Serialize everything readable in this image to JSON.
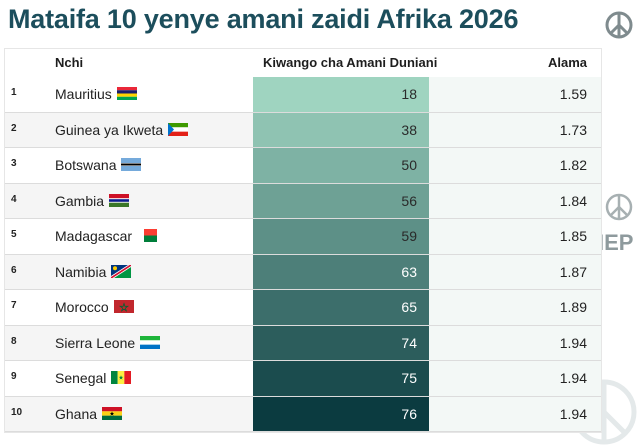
{
  "title": "Mataifa 10 yenye amani zaidi Afrika 2026",
  "logo_text": "IEP",
  "colors": {
    "title": "#1c4e5c",
    "gradient_start": "#9fd4c0",
    "gradient_end": "#0b3b40"
  },
  "chart_data": {
    "type": "table",
    "columns": [
      "",
      "Nchi",
      "Kiwango cha Amani Duniani",
      "Alama"
    ],
    "rows": [
      {
        "rank": "1",
        "country": "Mauritius",
        "flag": "mauritius-flag-icon",
        "rank_world": 18,
        "score": "1.59"
      },
      {
        "rank": "2",
        "country": "Guinea ya Ikweta",
        "flag": "equatorial-guinea-flag-icon",
        "rank_world": 38,
        "score": "1.73"
      },
      {
        "rank": "3",
        "country": "Botswana",
        "flag": "botswana-flag-icon",
        "rank_world": 50,
        "score": "1.82"
      },
      {
        "rank": "4",
        "country": "Gambia",
        "flag": "gambia-flag-icon",
        "rank_world": 56,
        "score": "1.84"
      },
      {
        "rank": "5",
        "country": "Madagascar",
        "flag": "madagascar-flag-icon",
        "rank_world": 59,
        "score": "1.85"
      },
      {
        "rank": "6",
        "country": "Namibia",
        "flag": "namibia-flag-icon",
        "rank_world": 63,
        "score": "1.87"
      },
      {
        "rank": "7",
        "country": "Morocco",
        "flag": "morocco-flag-icon",
        "rank_world": 65,
        "score": "1.89"
      },
      {
        "rank": "8",
        "country": "Sierra Leone",
        "flag": "sierra-leone-flag-icon",
        "rank_world": 74,
        "score": "1.94"
      },
      {
        "rank": "9",
        "country": "Senegal",
        "flag": "senegal-flag-icon",
        "rank_world": 75,
        "score": "1.94"
      },
      {
        "rank": "10",
        "country": "Ghana",
        "flag": "ghana-flag-icon",
        "rank_world": 76,
        "score": "1.94"
      }
    ]
  }
}
